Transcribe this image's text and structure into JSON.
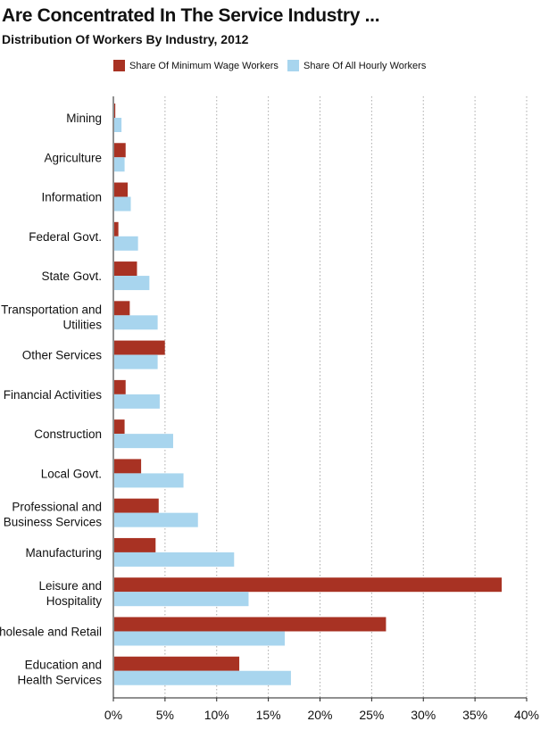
{
  "header": {
    "title": "Are Concentrated In The Service Industry ...",
    "subtitle": "Distribution Of Workers By Industry, 2012"
  },
  "legend": {
    "min_wage_label": "Share Of Minimum Wage Workers",
    "all_hourly_label": "Share Of All Hourly Workers"
  },
  "colors": {
    "min_wage": "#a83223",
    "all_hourly": "#a8d5ee",
    "grid": "#aaaaaa"
  },
  "chart_data": {
    "type": "bar",
    "orientation": "horizontal",
    "categories": [
      "Mining",
      "Agriculture",
      "Information",
      "Federal Govt.",
      "State Govt.",
      "Transportation and Utilities",
      "Other Services",
      "Financial Activities",
      "Construction",
      "Local Govt.",
      "Professional and Business Services",
      "Manufacturing",
      "Leisure and Hospitality",
      "Wholesale and Retail",
      "Education and Health Services"
    ],
    "series": [
      {
        "name": "Share Of Minimum Wage Workers",
        "values": [
          0.1,
          1.1,
          1.3,
          0.4,
          2.2,
          1.5,
          4.9,
          1.1,
          1.0,
          2.6,
          4.3,
          4.0,
          37.5,
          26.3,
          12.1
        ]
      },
      {
        "name": "Share Of All Hourly Workers",
        "values": [
          0.7,
          1.0,
          1.6,
          2.3,
          3.4,
          4.2,
          4.2,
          4.4,
          5.7,
          6.7,
          8.1,
          11.6,
          13.0,
          16.5,
          17.1
        ]
      }
    ],
    "xlim": [
      0,
      40
    ],
    "xticks": [
      0,
      5,
      10,
      15,
      20,
      25,
      30,
      35,
      40
    ],
    "xtick_labels": [
      "0%",
      "5%",
      "10%",
      "15%",
      "20%",
      "25%",
      "30%",
      "35%",
      "40%"
    ],
    "grid": true,
    "legend_position": "top"
  }
}
